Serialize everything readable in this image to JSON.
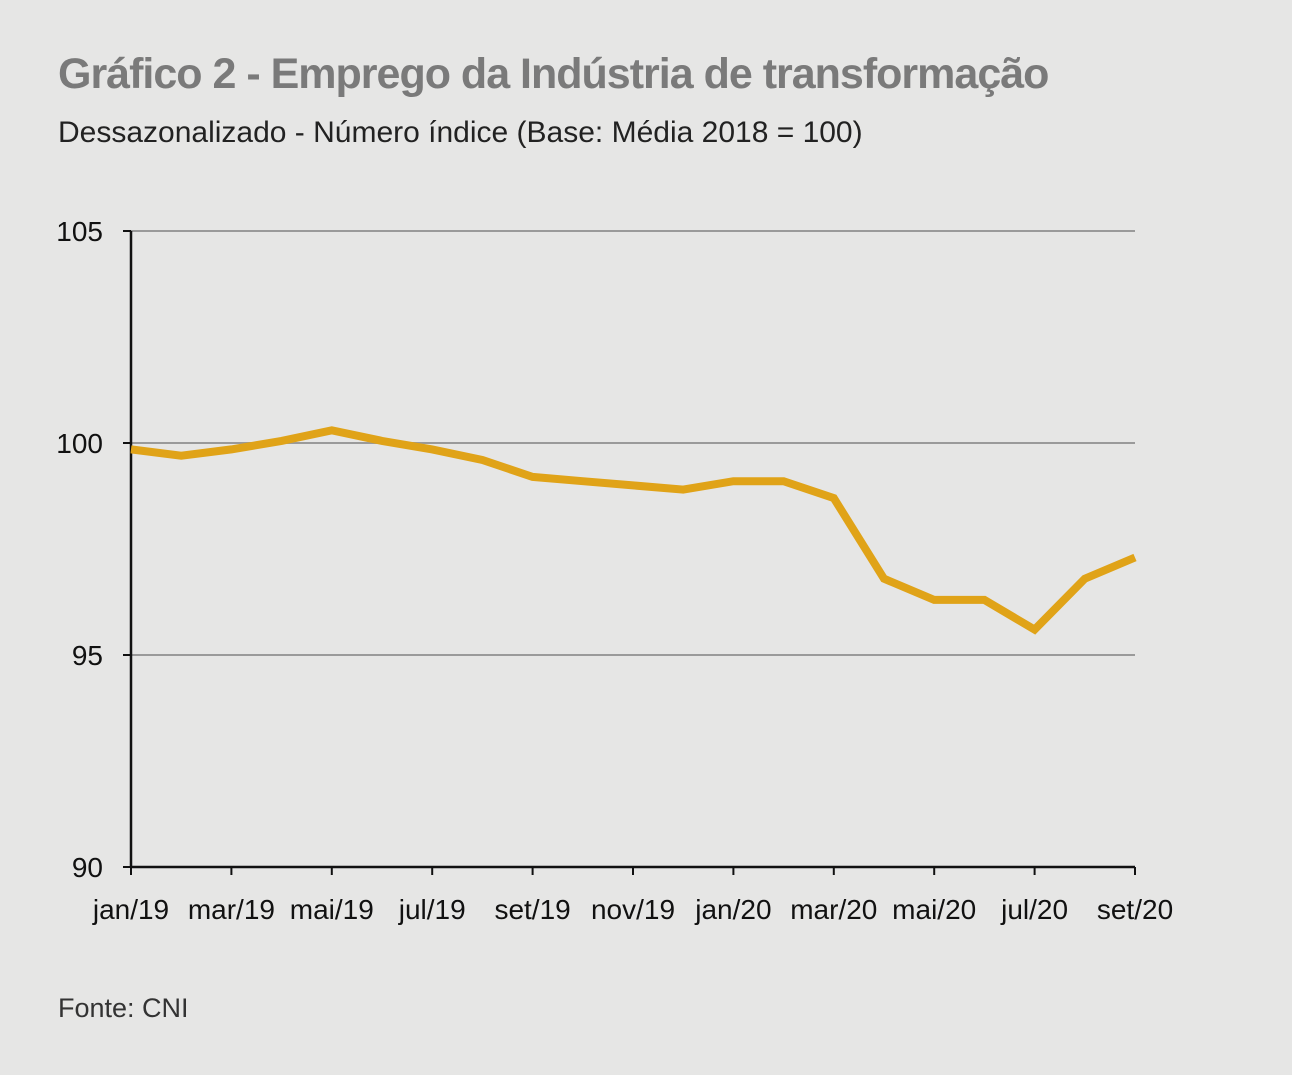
{
  "header": {
    "title": "Gráfico 2 - Emprego da Indústria de transformação",
    "subtitle": "Dessazonalizado - Número índice (Base: Média 2018 = 100)"
  },
  "footer": {
    "source": "Fonte: CNI"
  },
  "colors": {
    "background": "#e6e6e5",
    "line": "#e0a318",
    "grid": "#9a9a9a",
    "axis": "#111111"
  },
  "chart_data": {
    "type": "line",
    "title": "Gráfico 2 - Emprego da Indústria de transformação",
    "subtitle": "Dessazonalizado - Número índice (Base: Média 2018 = 100)",
    "xlabel": "",
    "ylabel": "",
    "ylim": [
      90,
      105
    ],
    "yticks": [
      90,
      95,
      100,
      105
    ],
    "grid": "horizontal",
    "x": [
      "jan/19",
      "fev/19",
      "mar/19",
      "abr/19",
      "mai/19",
      "jun/19",
      "jul/19",
      "ago/19",
      "set/19",
      "out/19",
      "nov/19",
      "dez/19",
      "jan/20",
      "fev/20",
      "mar/20",
      "abr/20",
      "mai/20",
      "jun/20",
      "jul/20",
      "ago/20",
      "set/20"
    ],
    "xtick_labels": [
      "jan/19",
      "mar/19",
      "mai/19",
      "jul/19",
      "set/19",
      "nov/19",
      "jan/20",
      "mar/20",
      "mai/20",
      "jul/20",
      "set/20"
    ],
    "series": [
      {
        "values": [
          99.85,
          99.7,
          99.85,
          100.05,
          100.3,
          100.05,
          99.85,
          99.6,
          99.2,
          99.1,
          99.0,
          98.9,
          99.1,
          99.1,
          98.7,
          96.8,
          96.3,
          96.3,
          95.6,
          96.8,
          97.3
        ]
      }
    ]
  }
}
